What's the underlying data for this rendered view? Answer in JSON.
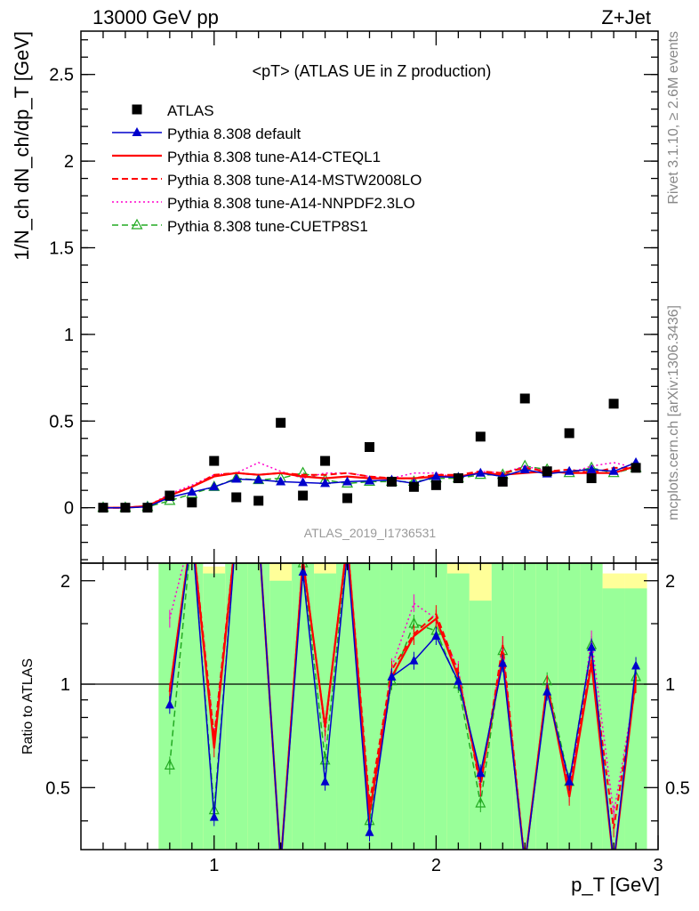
{
  "header": {
    "left": "13000 GeV pp",
    "right": "Z+Jet"
  },
  "side_labels": {
    "rivet": "Rivet 3.1.10, ≥ 2.6M events",
    "mcplots": "mcplots.cern.ch [arXiv:1306.3436]"
  },
  "analysis_id": "ATLAS_2019_I1736531",
  "chart_data": [
    {
      "type": "scatter",
      "title": "<pT> (ATLAS UE in Z production)",
      "ylabel": "1/N_ch dN_ch/dp_T [GeV]",
      "xlim": [
        0.4,
        3.0
      ],
      "ylim": [
        -0.32,
        2.75
      ],
      "y_ticks": [
        "0",
        "0.5",
        "1",
        "1.5",
        "2",
        "2.5"
      ],
      "x": [
        0.5,
        0.6,
        0.7,
        0.8,
        0.9,
        1.0,
        1.1,
        1.2,
        1.3,
        1.4,
        1.5,
        1.6,
        1.7,
        1.8,
        1.9,
        2.0,
        2.1,
        2.2,
        2.3,
        2.4,
        2.5,
        2.6,
        2.7,
        2.8,
        2.9
      ],
      "series": [
        {
          "name": "ATLAS",
          "color": "#000000",
          "style": "square",
          "values": [
            0.0,
            0.0,
            0.0,
            0.07,
            0.03,
            0.27,
            0.06,
            0.04,
            0.49,
            0.07,
            0.27,
            0.055,
            0.35,
            0.15,
            0.12,
            0.13,
            0.17,
            0.41,
            0.15,
            0.63,
            0.21,
            0.43,
            0.17,
            0.6,
            0.23
          ]
        },
        {
          "name": "Pythia 8.308 default",
          "color": "#0000cc",
          "style": "solid-triangle",
          "values": [
            0.0,
            0.0,
            0.005,
            0.06,
            0.09,
            0.12,
            0.165,
            0.16,
            0.15,
            0.145,
            0.14,
            0.15,
            0.155,
            0.16,
            0.14,
            0.18,
            0.175,
            0.2,
            0.18,
            0.22,
            0.195,
            0.21,
            0.22,
            0.21,
            0.26
          ]
        },
        {
          "name": "Pythia 8.308 tune-A14-CTEQL1",
          "color": "#ff0000",
          "style": "solid",
          "values": [
            0.0,
            0.0,
            0.01,
            0.07,
            0.12,
            0.18,
            0.2,
            0.19,
            0.2,
            0.18,
            0.17,
            0.18,
            0.17,
            0.17,
            0.17,
            0.18,
            0.18,
            0.2,
            0.19,
            0.2,
            0.21,
            0.2,
            0.2,
            0.2,
            0.24
          ]
        },
        {
          "name": "Pythia 8.308 tune-A14-MSTW2008LO",
          "color": "#ff0000",
          "style": "dashed",
          "values": [
            0.0,
            0.0,
            0.01,
            0.07,
            0.12,
            0.19,
            0.2,
            0.19,
            0.2,
            0.19,
            0.19,
            0.2,
            0.18,
            0.17,
            0.17,
            0.19,
            0.19,
            0.21,
            0.2,
            0.23,
            0.21,
            0.22,
            0.2,
            0.23,
            0.23
          ]
        },
        {
          "name": "Pythia 8.308 tune-A14-NNPDF2.3LO",
          "color": "#ff00cc",
          "style": "dotted",
          "values": [
            0.0,
            0.0,
            0.01,
            0.08,
            0.13,
            0.19,
            0.2,
            0.26,
            0.21,
            0.17,
            0.2,
            0.2,
            0.18,
            0.17,
            0.2,
            0.2,
            0.17,
            0.21,
            0.2,
            0.24,
            0.21,
            0.2,
            0.24,
            0.26,
            0.23
          ]
        },
        {
          "name": "Pythia 8.308 tune-CUETP8S1",
          "color": "#22aa22",
          "style": "dashed-open-triangle",
          "values": [
            0.0,
            0.0,
            0.005,
            0.04,
            0.08,
            0.12,
            0.17,
            0.16,
            0.17,
            0.2,
            0.16,
            0.14,
            0.15,
            0.15,
            0.15,
            0.17,
            0.17,
            0.19,
            0.19,
            0.24,
            0.22,
            0.2,
            0.23,
            0.2,
            0.23
          ]
        }
      ]
    },
    {
      "type": "line",
      "ylabel": "Ratio to ATLAS",
      "xlabel": "p_T [GeV]",
      "xlim": [
        0.4,
        3.0
      ],
      "ylim": [
        0.33,
        2.25
      ],
      "x_ticks": [
        "1",
        "2",
        "3"
      ],
      "y_ticks": [
        "0.5",
        "1",
        "2"
      ],
      "x": [
        0.8,
        0.9,
        1.0,
        1.1,
        1.2,
        1.3,
        1.4,
        1.5,
        1.6,
        1.7,
        1.8,
        1.9,
        2.0,
        2.1,
        2.2,
        2.3,
        2.4,
        2.5,
        2.6,
        2.7,
        2.8,
        2.9
      ],
      "band": {
        "bin_edges": [
          0.75,
          0.85,
          0.95,
          1.05,
          1.15,
          1.25,
          1.35,
          1.45,
          1.55,
          1.65,
          1.75,
          1.85,
          1.95,
          2.05,
          2.15,
          2.25,
          2.35,
          2.45,
          2.55,
          2.65,
          2.75,
          2.85,
          2.95
        ],
        "stat_color": "#99ff99",
        "total_color": "#ffff99",
        "stat_low": [
          0.33,
          0.33,
          0.33,
          0.33,
          0.33,
          0.33,
          0.33,
          0.33,
          0.33,
          0.33,
          0.33,
          0.33,
          0.33,
          0.33,
          0.33,
          0.33,
          0.33,
          0.33,
          0.33,
          0.33,
          0.33,
          0.33
        ],
        "stat_high": [
          2.25,
          2.25,
          2.1,
          2.25,
          2.25,
          2.0,
          2.25,
          2.1,
          2.25,
          2.25,
          2.25,
          2.25,
          2.25,
          2.1,
          1.75,
          2.25,
          2.25,
          2.25,
          2.25,
          2.25,
          1.9,
          1.9
        ],
        "total_high": [
          2.25,
          2.25,
          2.2,
          2.25,
          2.25,
          2.25,
          2.25,
          2.25,
          2.25,
          2.25,
          2.25,
          2.25,
          2.25,
          2.25,
          2.25,
          2.25,
          2.25,
          2.25,
          2.25,
          2.25,
          2.1,
          2.1
        ]
      },
      "series": [
        {
          "name": "Pythia 8.308 default",
          "values": [
            0.87,
            2.8,
            0.41,
            2.8,
            2.8,
            0.3,
            2.12,
            0.52,
            2.4,
            0.37,
            1.05,
            1.17,
            1.38,
            1.02,
            0.55,
            1.15,
            0.3,
            0.95,
            0.52,
            1.28,
            0.3,
            1.13
          ]
        },
        {
          "name": "Pythia 8.308 tune-A14-CTEQL1",
          "values": [
            0.95,
            2.8,
            0.65,
            2.8,
            2.8,
            0.3,
            2.3,
            0.75,
            2.6,
            0.42,
            1.05,
            1.38,
            1.55,
            1.05,
            0.52,
            1.2,
            0.3,
            1.0,
            0.47,
            1.15,
            0.3,
            1.05
          ]
        },
        {
          "name": "Pythia 8.308 tune-A14-MSTW2008LO",
          "values": [
            0.95,
            2.8,
            0.7,
            2.8,
            2.8,
            0.3,
            2.3,
            0.75,
            2.6,
            0.45,
            1.1,
            1.4,
            1.6,
            1.08,
            0.5,
            1.3,
            0.3,
            0.98,
            0.5,
            1.18,
            0.38,
            1.0
          ]
        },
        {
          "name": "Pythia 8.308 tune-A14-NNPDF2.3LO",
          "values": [
            1.55,
            2.8,
            0.7,
            2.8,
            2.8,
            0.3,
            2.4,
            0.72,
            2.6,
            0.42,
            1.12,
            1.72,
            1.55,
            1.1,
            0.5,
            1.3,
            0.3,
            1.0,
            0.48,
            1.35,
            0.42,
            1.0
          ]
        },
        {
          "name": "Pythia 8.308 tune-CUETP8S1",
          "values": [
            0.58,
            2.8,
            0.43,
            2.8,
            2.8,
            0.3,
            2.25,
            0.6,
            2.5,
            0.4,
            1.02,
            1.5,
            1.43,
            1.0,
            0.45,
            1.25,
            0.3,
            1.02,
            0.52,
            1.3,
            0.3,
            1.05
          ]
        }
      ]
    }
  ]
}
